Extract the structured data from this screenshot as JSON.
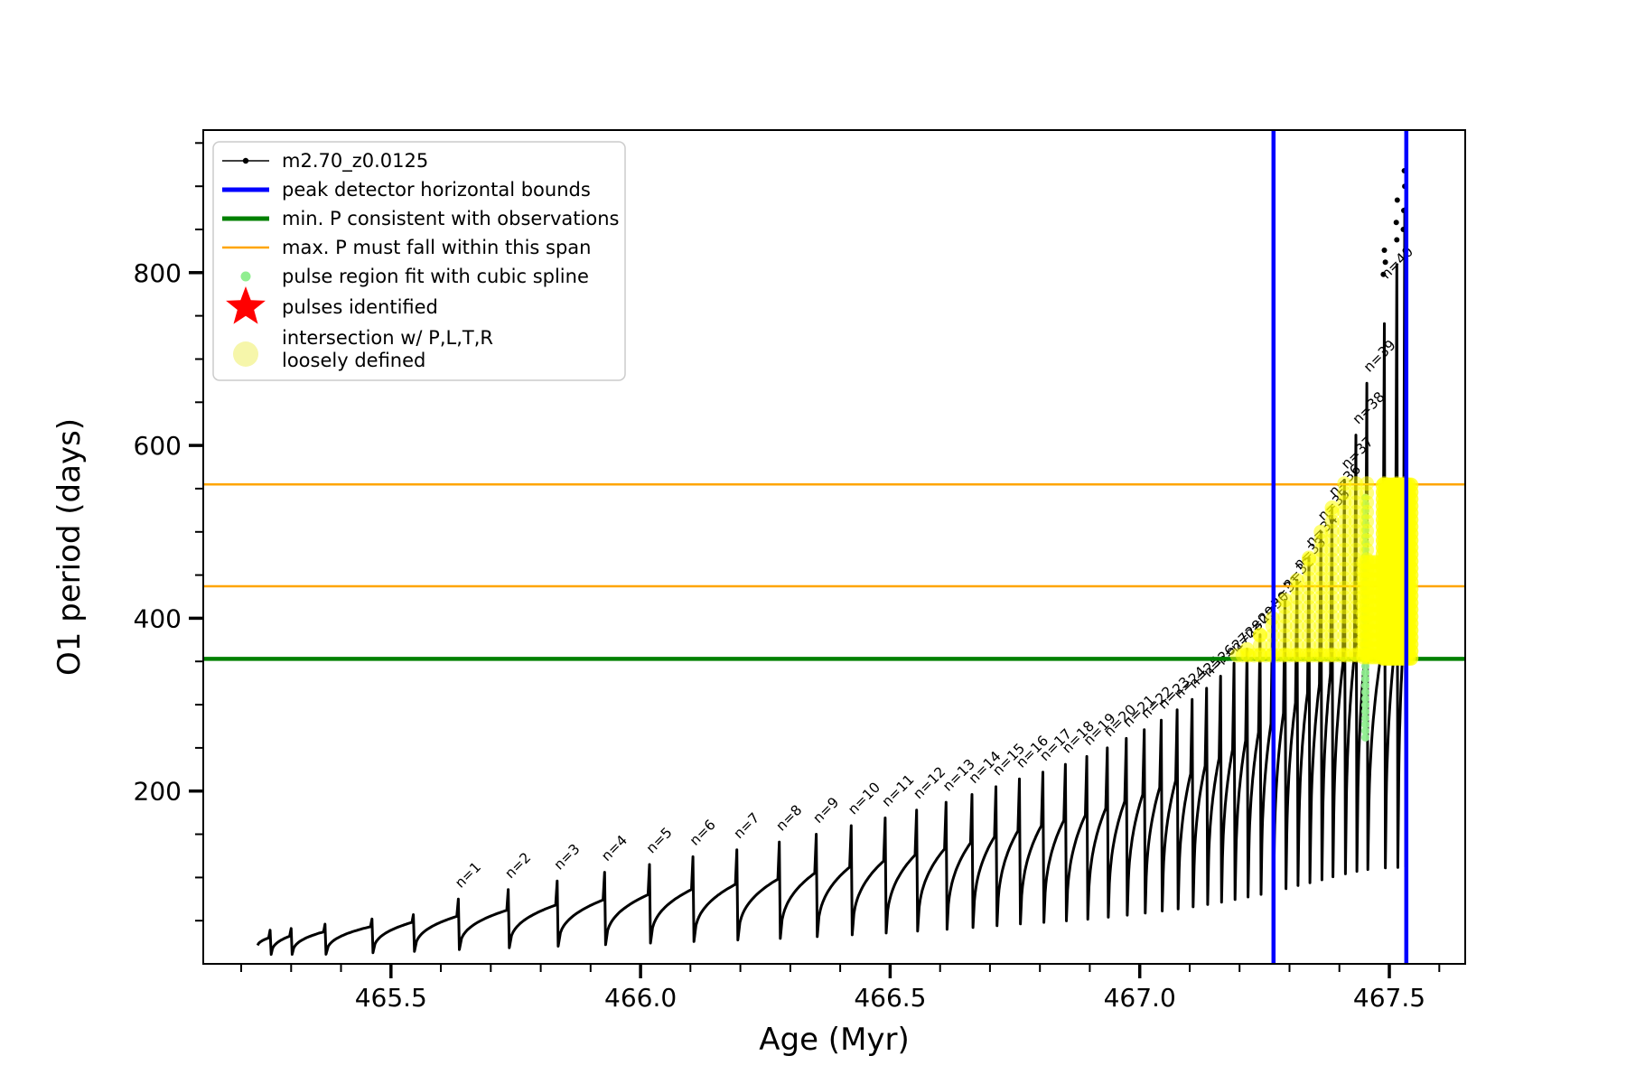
{
  "chart_data": {
    "type": "line",
    "title": "",
    "xlabel": "Age (Myr)",
    "ylabel": "O1 period (days)",
    "xlim": [
      465.124,
      467.652
    ],
    "ylim": [
      0,
      965
    ],
    "xticks_major": [
      465.5,
      466.0,
      466.5,
      467.0,
      467.5
    ],
    "xtick_labels": [
      "465.5",
      "466.0",
      "466.5",
      "467.0",
      "467.5"
    ],
    "xminor_step": 0.1,
    "yticks_major": [
      200,
      400,
      600,
      800
    ],
    "ytick_labels": [
      "200",
      "400",
      "600",
      "800"
    ],
    "yminor_step": 50,
    "grid": false,
    "colors": {
      "curve": "#000000",
      "peak_bounds_blue": "#0000ff",
      "min_p_green": "#008000",
      "max_p_orange": "#ffa500",
      "pulse_fit_green": "#90ee90",
      "pulses_red": "#ff0000",
      "intersection_yellow": "#ffff00",
      "legend_yellow": "#f6f6aa",
      "legend_border": "#cccccc"
    },
    "vlines_blue_age": [
      467.268,
      467.534
    ],
    "hlines_orange_days": [
      555,
      437
    ],
    "hline_green_days": 353,
    "curve_start": [
      465.232,
      18
    ],
    "pre_pulse_fields": [
      "age_myr",
      "shoulder_days"
    ],
    "pre_pulses": [
      [
        465.258,
        30
      ],
      [
        465.3,
        32
      ],
      [
        465.368,
        37
      ],
      [
        465.462,
        43
      ],
      [
        465.545,
        48
      ]
    ],
    "pulse_fields": [
      "n",
      "age_myr",
      "peak_days",
      "shoulder_days"
    ],
    "pulses": [
      [
        1,
        465.635,
        75,
        55
      ],
      [
        2,
        465.735,
        86,
        62
      ],
      [
        3,
        465.833,
        96,
        68
      ],
      [
        4,
        465.928,
        106,
        74
      ],
      [
        5,
        466.018,
        115,
        80
      ],
      [
        6,
        466.105,
        124,
        86
      ],
      [
        7,
        466.193,
        132,
        92
      ],
      [
        8,
        466.278,
        141,
        98
      ],
      [
        9,
        466.352,
        150,
        105
      ],
      [
        10,
        466.422,
        160,
        112
      ],
      [
        11,
        466.49,
        169,
        119
      ],
      [
        12,
        466.553,
        178,
        126
      ],
      [
        13,
        466.612,
        187,
        133
      ],
      [
        14,
        466.664,
        196,
        140
      ],
      [
        15,
        466.712,
        205,
        147
      ],
      [
        16,
        466.759,
        214,
        154
      ],
      [
        17,
        466.806,
        222,
        160
      ],
      [
        18,
        466.851,
        231,
        166
      ],
      [
        19,
        466.894,
        240,
        172
      ],
      [
        20,
        466.935,
        250,
        180
      ],
      [
        21,
        466.973,
        261,
        188
      ],
      [
        22,
        467.009,
        271,
        196
      ],
      [
        23,
        467.043,
        282,
        204
      ],
      [
        24,
        467.075,
        294,
        212
      ],
      [
        25,
        467.105,
        306,
        220
      ],
      [
        26,
        467.134,
        319,
        229
      ],
      [
        27,
        467.162,
        333,
        238
      ],
      [
        28,
        467.189,
        348,
        248
      ],
      [
        29,
        467.215,
        364,
        258
      ],
      [
        30,
        467.241,
        381,
        268
      ],
      [
        31,
        467.266,
        400,
        278
      ],
      [
        32,
        467.291,
        421,
        290
      ],
      [
        33,
        467.315,
        444,
        302
      ],
      [
        34,
        467.339,
        470,
        313
      ],
      [
        35,
        467.363,
        500,
        324
      ],
      [
        36,
        467.385,
        528,
        336
      ],
      [
        37,
        467.41,
        560,
        347
      ],
      [
        38,
        467.433,
        612,
        357
      ],
      [
        39,
        467.455,
        672,
        364
      ],
      [
        40,
        467.49,
        780,
        370
      ]
    ],
    "extra_spike_fields": [
      "age_myr",
      "peak_days",
      "shoulder_days"
    ],
    "extra_spikes": [
      [
        467.515,
        852,
        372
      ],
      [
        467.531,
        920,
        373
      ]
    ],
    "top_dot_fields": [
      "age_myr",
      "days"
    ],
    "top_dots": [
      [
        467.488,
        798
      ],
      [
        467.49,
        826
      ],
      [
        467.492,
        812
      ],
      [
        467.514,
        858
      ],
      [
        467.516,
        884
      ],
      [
        467.515,
        838
      ],
      [
        467.529,
        872
      ],
      [
        467.531,
        900
      ],
      [
        467.53,
        918
      ],
      [
        467.528,
        850
      ]
    ],
    "pulse_label_prefix": "n=",
    "pulse_label_rotation_deg": -45,
    "spline_dots": {
      "age_myr": 467.452,
      "days_min": 262,
      "days_max": 545,
      "step_days": 7.5
    },
    "yellow_markers": {
      "spike_chain": {
        "days_min": 358,
        "days_max": 556,
        "step_days": 11,
        "min_peak": 356
      },
      "green_row": {
        "age_min": 467.195,
        "age_max": 467.53,
        "age_step": 0.0115,
        "days": 357
      },
      "wing": {
        "age_min": 467.448,
        "age_max": 467.488,
        "age_step": 0.007,
        "days_min": 355,
        "days_max": 465,
        "days_step": 10
      },
      "blob": {
        "age_min": 467.488,
        "age_max": 467.546,
        "age_step": 0.005,
        "days_min": 354,
        "days_max": 558,
        "days_step": 8
      }
    },
    "legend": {
      "position": "upper left",
      "entries": [
        {
          "marker": "line-dot",
          "color": "#000000",
          "label": "m2.70_z0.0125"
        },
        {
          "marker": "line-thick",
          "color": "#0000ff",
          "label": "peak detector horizontal bounds"
        },
        {
          "marker": "line-thick",
          "color": "#008000",
          "label": "min. P consistent with observations"
        },
        {
          "marker": "line",
          "color": "#ffa500",
          "label": "max. P must fall within this span"
        },
        {
          "marker": "dot-small",
          "color": "#90ee90",
          "label": "pulse region fit with cubic spline"
        },
        {
          "marker": "star",
          "color": "#ff0000",
          "label": "pulses identified"
        },
        {
          "marker": "dot-large",
          "color": "#f6f6aa",
          "label": "intersection w/ P,L,T,R\nloosely defined"
        }
      ]
    }
  }
}
